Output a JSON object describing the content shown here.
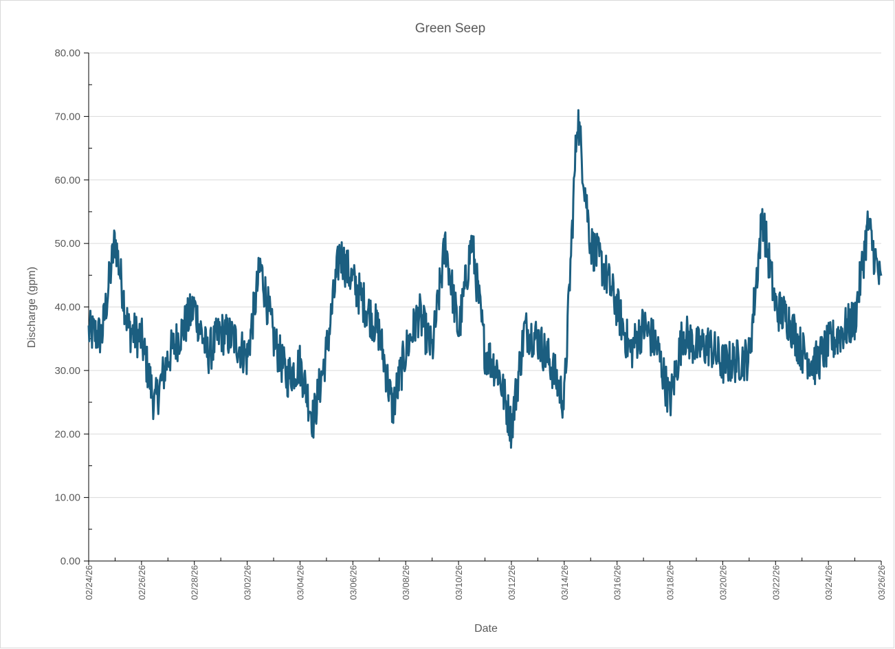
{
  "chart_data": {
    "type": "line",
    "title": "Green Seep",
    "xlabel": "Date",
    "ylabel": "Discharge (gpm)",
    "xlim": [
      "02/24/26",
      "03/26/26"
    ],
    "ylim": [
      0,
      80
    ],
    "y_ticks": [
      "0.00",
      "10.00",
      "20.00",
      "30.00",
      "40.00",
      "50.00",
      "60.00",
      "70.00",
      "80.00"
    ],
    "x_ticks": [
      "02/24/26",
      "02/26/26",
      "02/28/26",
      "03/02/26",
      "03/04/26",
      "03/06/26",
      "03/08/26",
      "03/10/26",
      "03/12/26",
      "03/14/26",
      "03/16/26",
      "03/18/26",
      "03/20/26",
      "03/22/26",
      "03/24/26",
      "03/26/26"
    ],
    "grid": "horizontal",
    "legend": "none",
    "line_color": "#1b5e80",
    "series": [
      {
        "x": [
          "02/24/26",
          "02/24/26",
          "02/25/26",
          "02/25/26",
          "02/26/26",
          "02/26/26",
          "02/27/26",
          "02/27/26",
          "02/28/26",
          "02/28/26",
          "03/01/26",
          "03/01/26",
          "03/02/26",
          "03/02/26",
          "03/03/26",
          "03/03/26",
          "03/04/26",
          "03/04/26",
          "03/05/26",
          "03/05/26",
          "03/06/26",
          "03/06/26",
          "03/07/26",
          "03/07/26",
          "03/08/26",
          "03/08/26",
          "03/09/26",
          "03/09/26",
          "03/10/26",
          "03/10/26",
          "03/11/26",
          "03/11/26",
          "03/12/26",
          "03/12/26",
          "03/13/26",
          "03/13/26",
          "03/14/26",
          "03/14/26",
          "03/15/26",
          "03/15/26",
          "03/16/26",
          "03/16/26",
          "03/17/26",
          "03/17/26",
          "03/18/26",
          "03/18/26",
          "03/19/26",
          "03/19/26",
          "03/20/26",
          "03/20/26",
          "03/21/26",
          "03/21/26",
          "03/22/26",
          "03/22/26",
          "03/23/26",
          "03/23/26",
          "03/24/26",
          "03/24/26",
          "03/25/26",
          "03/25/26",
          "03/26/26"
        ],
        "values": [
          36.0,
          35.5,
          50.7,
          36.5,
          35.0,
          24.6,
          32.0,
          36.0,
          40.0,
          32.5,
          36.0,
          35.0,
          32.0,
          46.5,
          35.0,
          29.0,
          31.0,
          22.2,
          33.0,
          48.5,
          44.0,
          40.0,
          36.0,
          24.0,
          33.0,
          39.0,
          33.0,
          50.0,
          36.0,
          50.5,
          33.0,
          30.0,
          21.0,
          36.5,
          35.0,
          31.0,
          25.0,
          70.5,
          50.0,
          46.0,
          40.0,
          33.0,
          37.0,
          34.0,
          25.0,
          36.0,
          33.5,
          34.0,
          31.0,
          31.5,
          32.0,
          54.5,
          40.0,
          38.0,
          33.0,
          31.0,
          34.0,
          36.0,
          38.0,
          53.0,
          43.0
        ]
      }
    ]
  }
}
